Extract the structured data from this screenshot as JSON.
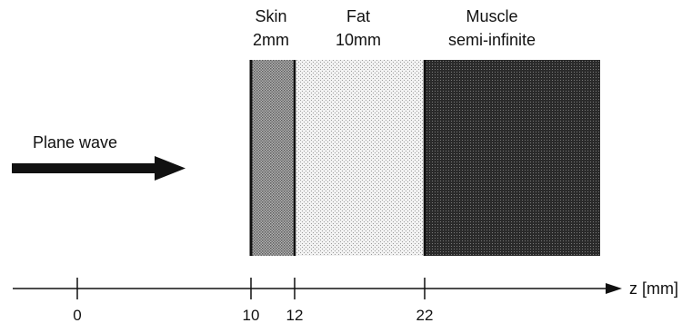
{
  "layers": [
    {
      "name": "Skin",
      "thickness": "2mm"
    },
    {
      "name": "Fat",
      "thickness": "10mm"
    },
    {
      "name": "Muscle",
      "thickness": "semi-infinite"
    }
  ],
  "wave": {
    "label": "Plane wave"
  },
  "axis": {
    "label": "z [mm]",
    "ticks": [
      "0",
      "10",
      "12",
      "22"
    ]
  },
  "colors": {
    "skin": "#8e8e8e",
    "fat": "#e2e2e2",
    "muscle": "#3a3a3a",
    "ink": "#111111"
  }
}
